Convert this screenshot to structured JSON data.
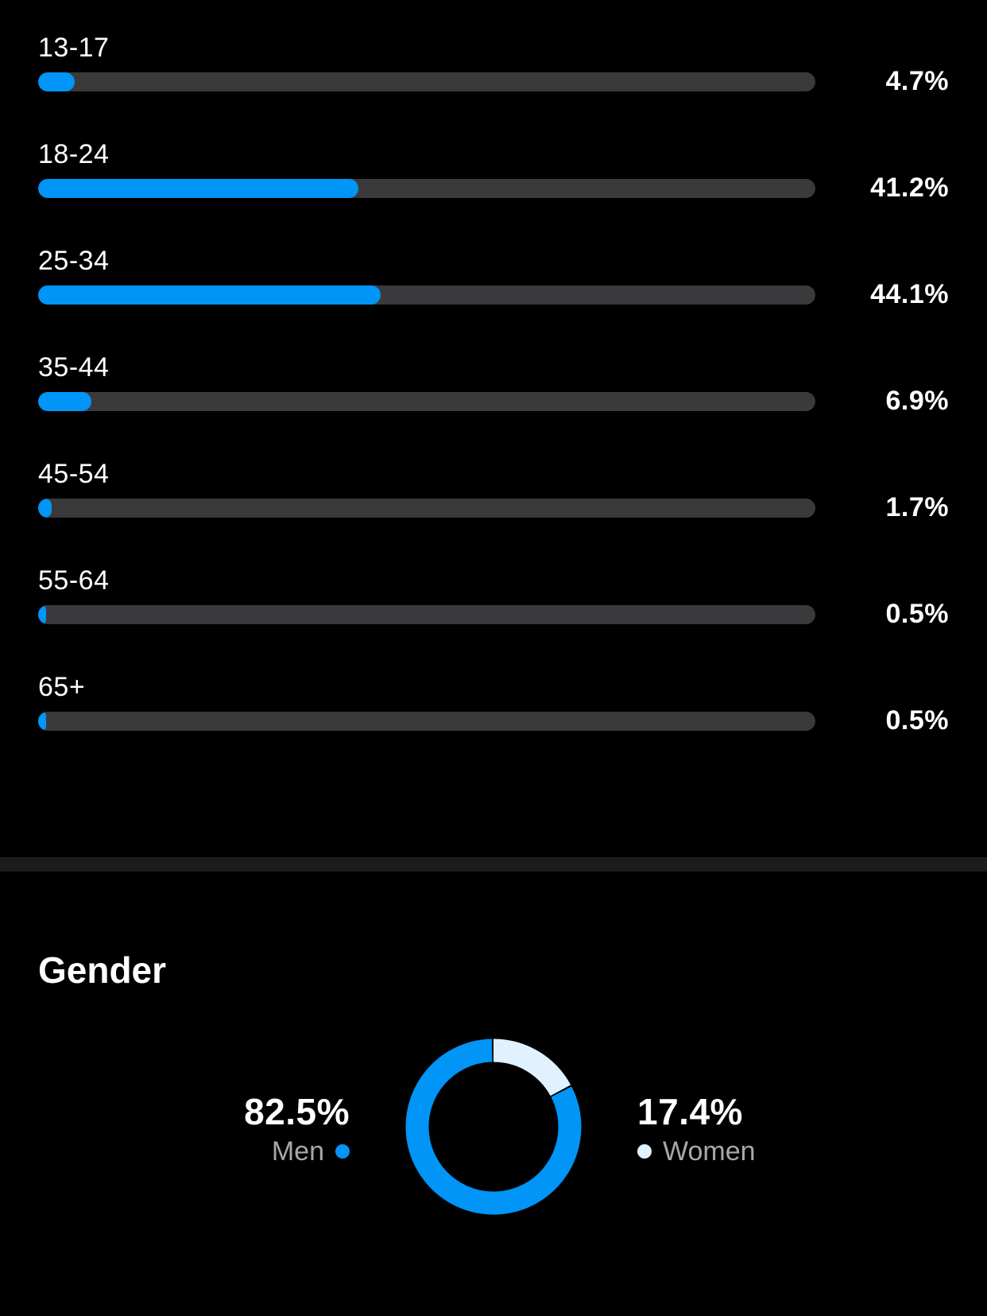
{
  "colors": {
    "accent": "#0095f6",
    "track": "#3a3a3c",
    "women": "#e0f1ff",
    "divider": "#1c1c1e"
  },
  "age": {
    "rows": [
      {
        "label": "13-17",
        "value": "4.7%"
      },
      {
        "label": "18-24",
        "value": "41.2%"
      },
      {
        "label": "25-34",
        "value": "44.1%"
      },
      {
        "label": "35-44",
        "value": "6.9%"
      },
      {
        "label": "45-54",
        "value": "1.7%"
      },
      {
        "label": "55-64",
        "value": "0.5%"
      },
      {
        "label": "65+",
        "value": "0.5%"
      }
    ]
  },
  "gender": {
    "title": "Gender",
    "men": {
      "value": "82.5%",
      "label": "Men"
    },
    "women": {
      "value": "17.4%",
      "label": "Women"
    }
  },
  "chart_data": [
    {
      "type": "bar",
      "orientation": "horizontal",
      "categories": [
        "13-17",
        "18-24",
        "25-34",
        "35-44",
        "45-54",
        "55-64",
        "65+"
      ],
      "values": [
        4.7,
        41.2,
        44.1,
        6.9,
        1.7,
        0.5,
        0.5
      ],
      "xlim": [
        0,
        100
      ]
    },
    {
      "type": "pie",
      "style": "donut",
      "title": "Gender",
      "categories": [
        "Men",
        "Women"
      ],
      "values": [
        82.5,
        17.4
      ],
      "colors": [
        "#0095f6",
        "#e0f1ff"
      ]
    }
  ]
}
